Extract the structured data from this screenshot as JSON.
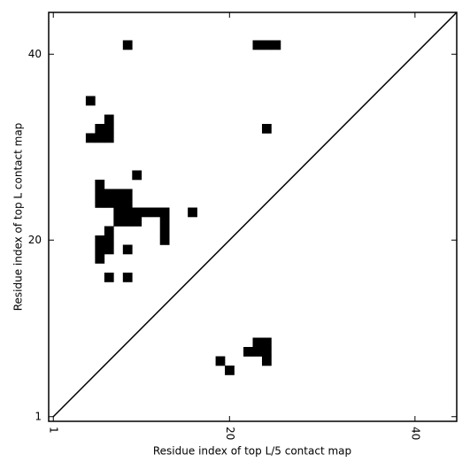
{
  "chart_data": {
    "type": "scatter",
    "xlabel": "Residue index of top L/5 contact map",
    "ylabel": "Residue index of top L contact map",
    "xlim": [
      0.5,
      44.5
    ],
    "ylim": [
      0.5,
      44.5
    ],
    "xticks": [
      1,
      20,
      40
    ],
    "yticks": [
      1,
      20,
      40
    ],
    "marker": "square",
    "series": [
      {
        "color": "#000000",
        "x": [
          9,
          23,
          24,
          25,
          5,
          7,
          6,
          7,
          5,
          6,
          7,
          24,
          10,
          6,
          6,
          7,
          8,
          9,
          6,
          7,
          8,
          9,
          8,
          9,
          10,
          11,
          12,
          13,
          16,
          8,
          9,
          10,
          13,
          7,
          13,
          6,
          7,
          13,
          6,
          7,
          9,
          6,
          7,
          9
        ],
        "y": [
          41,
          41,
          41,
          41,
          35,
          33,
          32,
          32,
          31,
          31,
          31,
          32,
          27,
          26,
          25,
          25,
          25,
          25,
          24,
          24,
          24,
          24,
          23,
          23,
          23,
          23,
          23,
          23,
          23,
          22,
          22,
          22,
          22,
          21,
          21,
          20,
          20,
          20,
          19,
          19,
          19,
          18,
          16,
          16
        ]
      },
      {
        "color": "#000000",
        "x": [
          23,
          24,
          22,
          23,
          24,
          19,
          24,
          20
        ],
        "y": [
          9,
          9,
          8,
          8,
          8,
          7,
          7,
          6
        ]
      },
      {
        "type": "line",
        "color": "#000000",
        "x": [
          1,
          44.5
        ],
        "y": [
          1,
          44.5
        ]
      }
    ]
  }
}
